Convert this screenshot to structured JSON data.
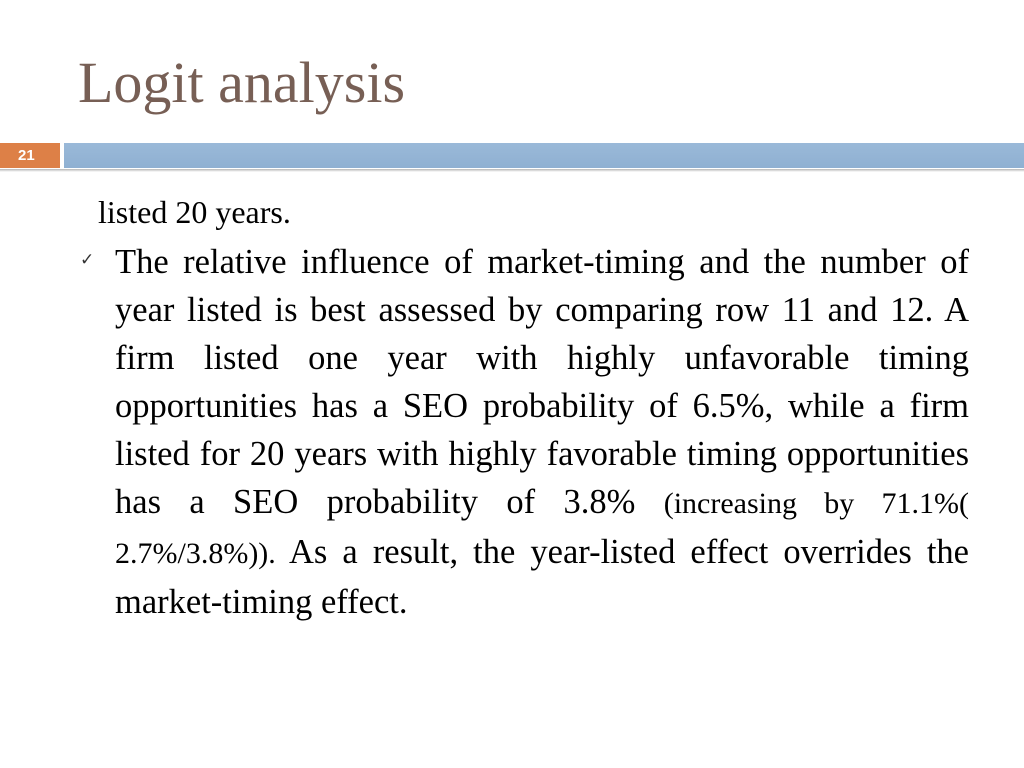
{
  "slide": {
    "title": "Logit analysis",
    "number": "21"
  },
  "body": {
    "continuation": "listed 20 years.",
    "bullet": {
      "icon": "checkmark-icon",
      "text_before": "The relative influence of market-timing and the number of year listed is best assessed by comparing row 11 and 12. A firm listed one year with highly unfavorable timing opportunities has a SEO probability of 6.5%, while a firm listed for 20 years with highly favorable timing opportunities has a SEO probability of 3.8% ",
      "text_small": "(increasing by 71.1%( 2.7%/3.8%)).",
      "text_after": " As a result, the year-listed effect overrides the market-timing effect."
    }
  },
  "colors": {
    "title": "#775f55",
    "accent_bar": "#93b3d4",
    "slide_number_bg": "#dd8047",
    "text": "#000000"
  }
}
